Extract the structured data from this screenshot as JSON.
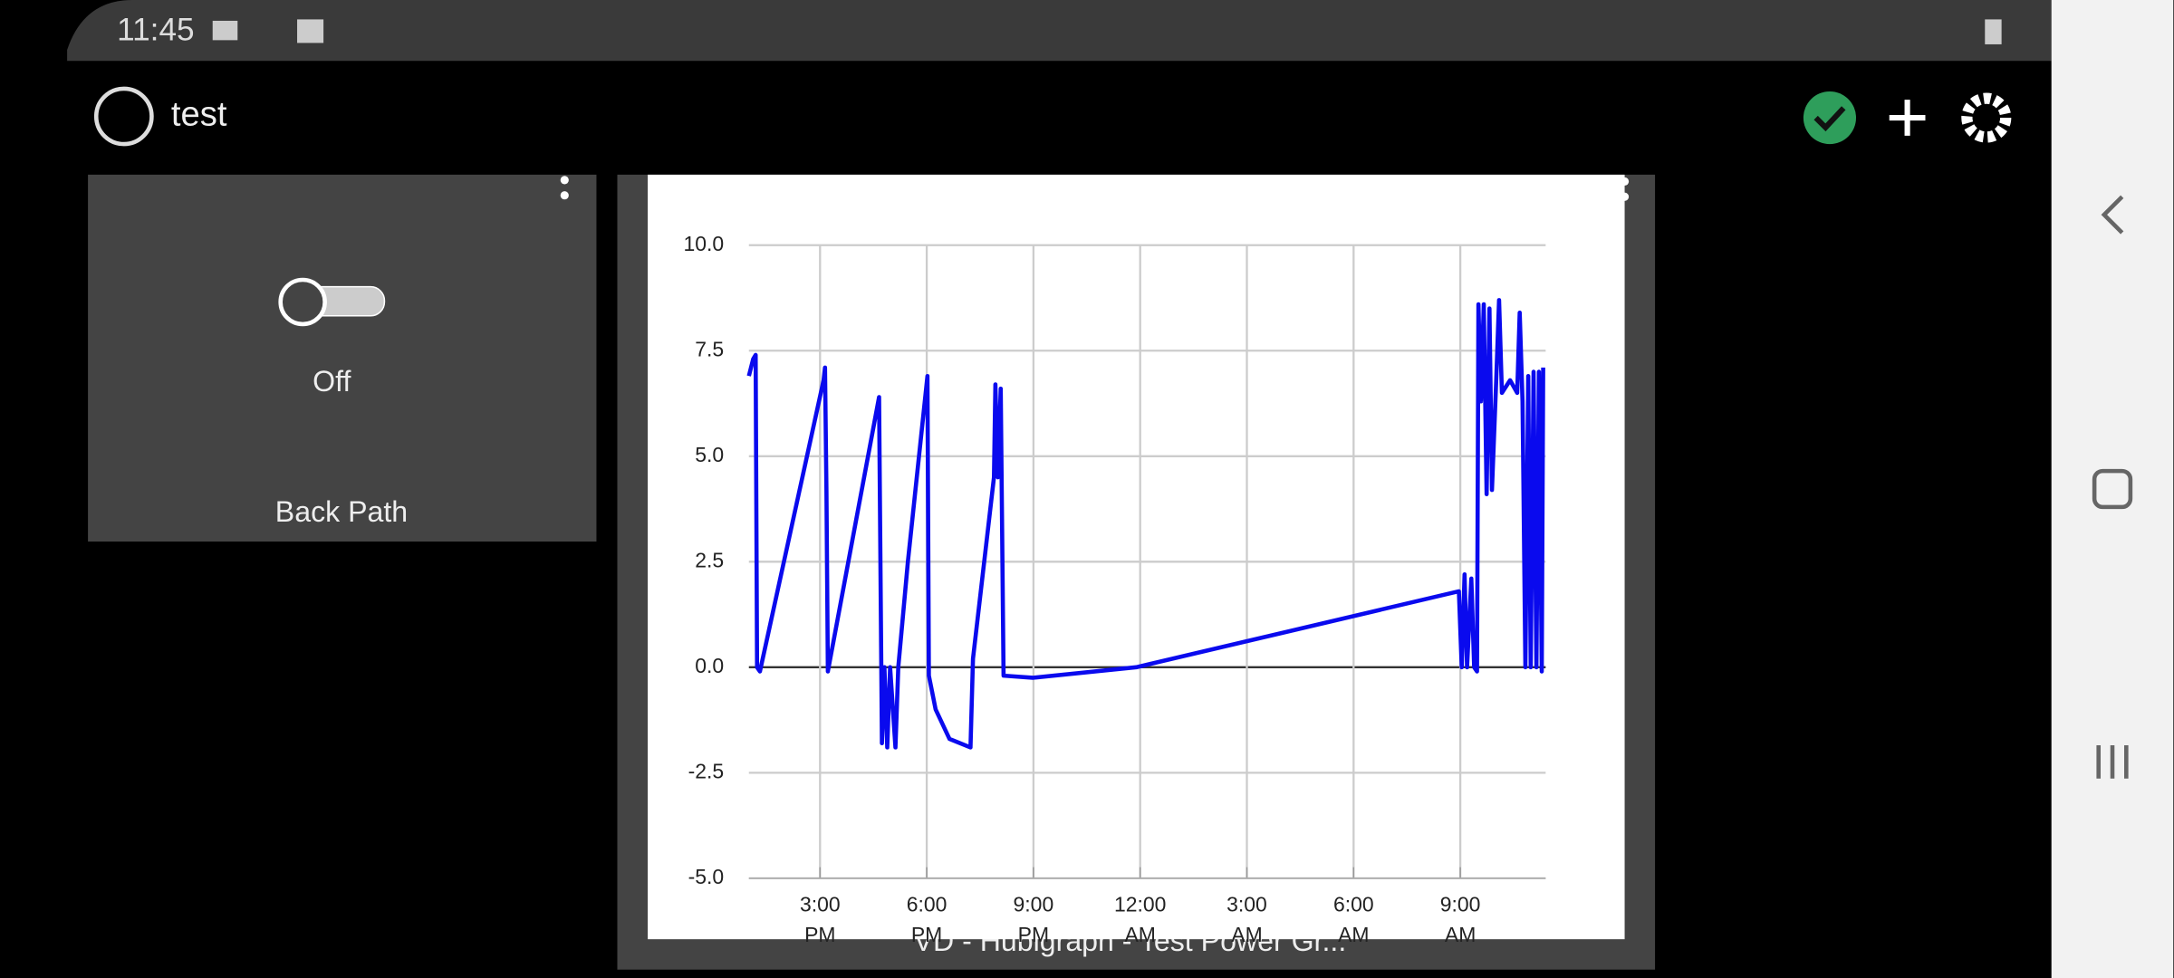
{
  "status_bar": {
    "time": "11:45"
  },
  "app_bar": {
    "title": "test"
  },
  "switch_tile": {
    "type_label": "Switch",
    "state": "Off",
    "label": "Back Path"
  },
  "graph_tile": {
    "caption": "VD - Hubigraph - Test Power Gr...",
    "chart_data": {
      "type": "line",
      "series": [
        {
          "color": "#0a0aee",
          "x": [
            13.0,
            13.12,
            13.19,
            13.23,
            13.31,
            15.1,
            15.14,
            15.18,
            15.22,
            16.66,
            16.74,
            16.81,
            16.89,
            16.97,
            17.12,
            17.2,
            17.47,
            18.02,
            18.06,
            18.25,
            18.64,
            19.23,
            19.3,
            19.89,
            19.93,
            20.0,
            20.08,
            20.16,
            20.98,
            23.89,
            32.96,
            33.04,
            33.12,
            33.19,
            33.31,
            33.39,
            33.47,
            33.51,
            33.58,
            33.66,
            33.74,
            33.82,
            33.89,
            34.01,
            34.09,
            34.17,
            34.4,
            34.6,
            34.67,
            34.75,
            34.83,
            34.91,
            34.98,
            35.06,
            35.14,
            35.21,
            35.29,
            35.33
          ],
          "values": [
            6.9,
            7.3,
            7.4,
            0,
            -0.1,
            6.8,
            7.1,
            4.2,
            -0.1,
            6.4,
            -1.8,
            0,
            -1.9,
            0,
            -1.9,
            0,
            2.5,
            6.9,
            -0.2,
            -1.0,
            -1.7,
            -1.9,
            0.2,
            4.5,
            6.7,
            4.5,
            6.6,
            -0.2,
            -0.25,
            0,
            1.8,
            0,
            2.2,
            0,
            2.1,
            0,
            -0.1,
            8.6,
            6.3,
            8.6,
            4.1,
            8.5,
            4.2,
            6.8,
            8.7,
            6.5,
            6.8,
            6.5,
            8.4,
            6.3,
            0,
            6.9,
            0,
            7.0,
            0,
            7.0,
            -0.1,
            7.1
          ]
        }
      ],
      "xlim": [
        13,
        35.4
      ],
      "xticks": [
        {
          "value": 15,
          "label": [
            "3:00",
            "PM"
          ]
        },
        {
          "value": 18,
          "label": [
            "6:00",
            "PM"
          ]
        },
        {
          "value": 21,
          "label": [
            "9:00",
            "PM"
          ]
        },
        {
          "value": 24,
          "label": [
            "12:00",
            "AM"
          ]
        },
        {
          "value": 27,
          "label": [
            "3:00",
            "AM"
          ]
        },
        {
          "value": 30,
          "label": [
            "6:00",
            "AM"
          ]
        },
        {
          "value": 33,
          "label": [
            "9:00",
            "AM"
          ]
        }
      ],
      "ylim": [
        -5,
        10
      ],
      "yticks": [
        {
          "value": -5,
          "label": "-5.0"
        },
        {
          "value": -2.5,
          "label": "-2.5"
        },
        {
          "value": 0,
          "label": "0.0"
        },
        {
          "value": 2.5,
          "label": "2.5"
        },
        {
          "value": 5,
          "label": "5.0"
        },
        {
          "value": 7.5,
          "label": "7.5"
        },
        {
          "value": 10,
          "label": "10.0"
        }
      ],
      "grid": true
    }
  }
}
